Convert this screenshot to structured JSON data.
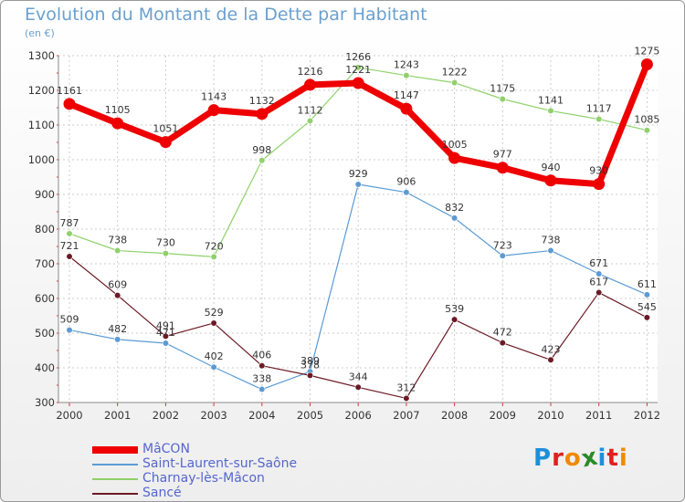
{
  "chart_data": {
    "type": "line",
    "title": "Evolution du Montant de la Dette par Habitant",
    "subtitle": "(en €)",
    "categories": [
      "2000",
      "2001",
      "2002",
      "2003",
      "2004",
      "2005",
      "2006",
      "2007",
      "2008",
      "2009",
      "2010",
      "2011",
      "2012"
    ],
    "ylim": [
      300,
      1300
    ],
    "yticks": [
      300,
      400,
      500,
      600,
      700,
      800,
      900,
      1000,
      1100,
      1200,
      1300
    ],
    "grid": true,
    "legend_position": "bottom-left",
    "series": [
      {
        "name": "MâCON",
        "color": "#ee0000",
        "values": [
          1161,
          1105,
          1051,
          1143,
          1132,
          1216,
          1221,
          1147,
          1005,
          977,
          940,
          930,
          1275
        ]
      },
      {
        "name": "Saint-Laurent-sur-Saône",
        "color": "#5b9bd5",
        "values": [
          509,
          482,
          471,
          402,
          338,
          389,
          929,
          906,
          832,
          723,
          738,
          671,
          611
        ]
      },
      {
        "name": "Charnay-lès-Mâcon",
        "color": "#8fd16a",
        "values": [
          787,
          738,
          730,
          720,
          998,
          1112,
          1266,
          1243,
          1222,
          1175,
          1141,
          1117,
          1085
        ]
      },
      {
        "name": "Sancé",
        "color": "#6b1a24",
        "values": [
          721,
          609,
          491,
          529,
          406,
          378,
          344,
          312,
          539,
          472,
          423,
          617,
          545
        ]
      }
    ]
  },
  "logo": {
    "letters": [
      "P",
      "r",
      "o",
      "x",
      "i",
      "t",
      "i"
    ],
    "colors": [
      "#1c8fd9",
      "#e02020",
      "#f08a00",
      "#2a8a2a",
      "#1c8fd9",
      "#e02020",
      "#f08a00"
    ]
  }
}
